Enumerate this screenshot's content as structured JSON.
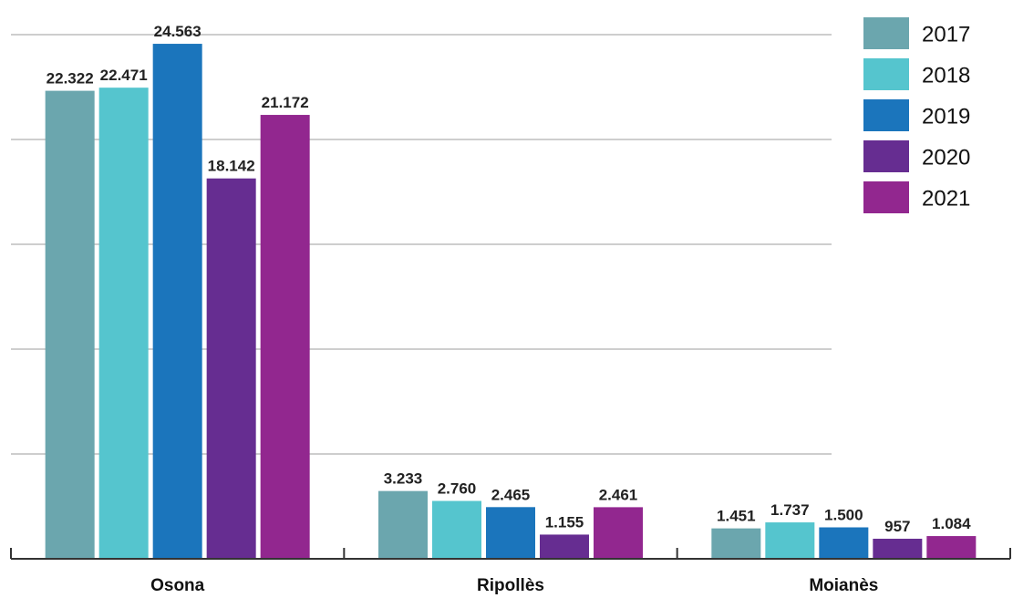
{
  "chart_data": {
    "type": "bar",
    "categories": [
      "Osona",
      "Ripollès",
      "Moianès"
    ],
    "series": [
      {
        "name": "2017",
        "values": [
          22322,
          3233,
          1451
        ],
        "labels": [
          "22.322",
          "3.233",
          "1.451"
        ],
        "color": "#6BA6AE"
      },
      {
        "name": "2018",
        "values": [
          22471,
          2760,
          1737
        ],
        "labels": [
          "22.471",
          "2.760",
          "1.737"
        ],
        "color": "#55C5CE"
      },
      {
        "name": "2019",
        "values": [
          24563,
          2465,
          1500
        ],
        "labels": [
          "24.563",
          "2.465",
          "1.500"
        ],
        "color": "#1B75BC"
      },
      {
        "name": "2020",
        "values": [
          18142,
          1155,
          957
        ],
        "labels": [
          "18.142",
          "1.155",
          "957"
        ],
        "color": "#662D91"
      },
      {
        "name": "2021",
        "values": [
          21172,
          2461,
          1084
        ],
        "labels": [
          "21.172",
          "2.461",
          "1.084"
        ],
        "color": "#92278F"
      }
    ],
    "ylim": [
      0,
      25000
    ],
    "y_gridlines": [
      5000,
      10000,
      15000,
      20000,
      25000
    ],
    "grid": true,
    "legend_position": "top-right",
    "title": "",
    "xlabel": "",
    "ylabel": ""
  },
  "colors": {
    "gridline": "#BDBDBD",
    "axis": "#333333"
  }
}
